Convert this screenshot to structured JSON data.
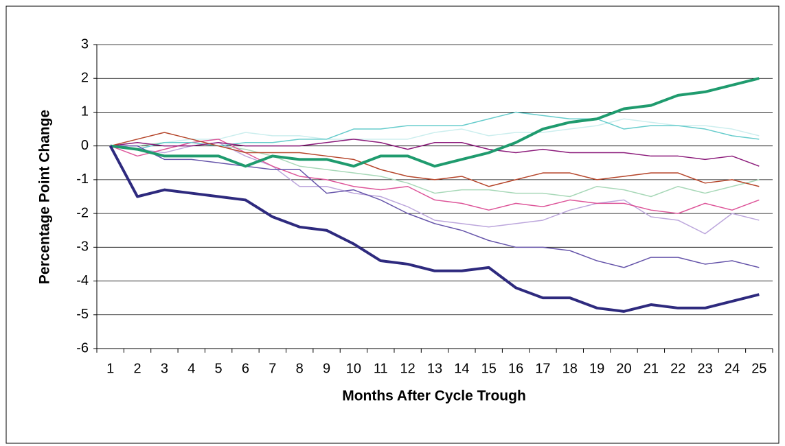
{
  "chart_data": {
    "type": "line",
    "x_label": "Months After Cycle Trough",
    "y_label": "Percentage Point Change",
    "categories": [
      "1",
      "2",
      "3",
      "4",
      "5",
      "6",
      "7",
      "8",
      "9",
      "10",
      "11",
      "12",
      "13",
      "14",
      "15",
      "16",
      "17",
      "18",
      "19",
      "20",
      "21",
      "22",
      "23",
      "24",
      "25"
    ],
    "ylim": [
      -6,
      3
    ],
    "yticks": [
      -6,
      -5,
      -4,
      -3,
      -2,
      -1,
      0,
      1,
      2,
      3
    ],
    "grid": true,
    "series": [
      {
        "color": "#CCEEEE",
        "linewidth": 1.5,
        "values": [
          0,
          0,
          0.1,
          0.2,
          0.2,
          0.4,
          0.3,
          0.3,
          0.2,
          0.2,
          0.2,
          0.2,
          0.4,
          0.5,
          0.3,
          0.4,
          0.4,
          0.5,
          0.6,
          0.8,
          0.7,
          0.6,
          0.6,
          0.5,
          0.3
        ]
      },
      {
        "color": "#A8D8B8",
        "linewidth": 1.5,
        "values": [
          0,
          0,
          0.1,
          0.1,
          0.0,
          -0.1,
          -0.3,
          -0.6,
          -0.7,
          -0.8,
          -0.9,
          -1.1,
          -1.4,
          -1.3,
          -1.3,
          -1.4,
          -1.4,
          -1.5,
          -1.2,
          -1.3,
          -1.5,
          -1.2,
          -1.4,
          -1.2,
          -1.0
        ]
      },
      {
        "color": "#BCA6DC",
        "linewidth": 1.5,
        "values": [
          0,
          -0.1,
          -0.2,
          0.0,
          0.1,
          -0.3,
          -0.6,
          -1.2,
          -1.2,
          -1.4,
          -1.5,
          -1.8,
          -2.2,
          -2.3,
          -2.4,
          -2.3,
          -2.2,
          -1.9,
          -1.7,
          -1.6,
          -2.1,
          -2.2,
          -2.6,
          -2.0,
          -2.2
        ]
      },
      {
        "color": "#DD5599",
        "linewidth": 1.5,
        "values": [
          0,
          -0.3,
          -0.1,
          0.1,
          0.2,
          -0.2,
          -0.6,
          -0.9,
          -1.0,
          -1.2,
          -1.3,
          -1.2,
          -1.6,
          -1.7,
          -1.9,
          -1.7,
          -1.8,
          -1.6,
          -1.7,
          -1.7,
          -1.9,
          -2.0,
          -1.7,
          -1.9,
          -1.6
        ]
      },
      {
        "color": "#66CCCC",
        "linewidth": 1.5,
        "values": [
          0,
          -0.1,
          0.1,
          0.1,
          0.0,
          0.1,
          0.1,
          0.2,
          0.2,
          0.5,
          0.5,
          0.6,
          0.6,
          0.6,
          0.8,
          1.0,
          0.9,
          0.8,
          0.8,
          0.5,
          0.6,
          0.6,
          0.5,
          0.3,
          0.2
        ]
      },
      {
        "color": "#8B1A7A",
        "linewidth": 1.5,
        "values": [
          0,
          0.1,
          0.0,
          0.0,
          0.1,
          0.0,
          0.0,
          0.0,
          0.1,
          0.2,
          0.1,
          -0.1,
          0.1,
          0.1,
          -0.1,
          -0.2,
          -0.1,
          -0.2,
          -0.2,
          -0.2,
          -0.3,
          -0.3,
          -0.4,
          -0.3,
          -0.6
        ]
      },
      {
        "color": "#B5452A",
        "linewidth": 1.5,
        "values": [
          0,
          0.2,
          0.4,
          0.2,
          0.0,
          -0.2,
          -0.2,
          -0.2,
          -0.3,
          -0.4,
          -0.7,
          -0.9,
          -1.0,
          -0.9,
          -1.2,
          -1.0,
          -0.8,
          -0.8,
          -1.0,
          -0.9,
          -0.8,
          -0.8,
          -1.1,
          -1.0,
          -1.2
        ]
      },
      {
        "color": "#6655AA",
        "linewidth": 1.5,
        "values": [
          0,
          0,
          -0.4,
          -0.4,
          -0.5,
          -0.6,
          -0.7,
          -0.7,
          -1.4,
          -1.3,
          -1.6,
          -2.0,
          -2.3,
          -2.5,
          -2.8,
          -3.0,
          -3.0,
          -3.1,
          -3.4,
          -3.6,
          -3.3,
          -3.3,
          -3.5,
          -3.4,
          -3.6
        ]
      },
      {
        "color": "#1F9B6E",
        "linewidth": 4,
        "values": [
          0,
          -0.1,
          -0.3,
          -0.3,
          -0.3,
          -0.6,
          -0.3,
          -0.4,
          -0.4,
          -0.6,
          -0.3,
          -0.3,
          -0.6,
          -0.4,
          -0.2,
          0.1,
          0.5,
          0.7,
          0.8,
          1.1,
          1.2,
          1.5,
          1.6,
          1.8,
          2.0
        ]
      },
      {
        "color": "#2E2A7E",
        "linewidth": 4,
        "values": [
          0,
          -1.5,
          -1.3,
          -1.4,
          -1.5,
          -1.6,
          -2.1,
          -2.4,
          -2.5,
          -2.9,
          -3.4,
          -3.5,
          -3.7,
          -3.7,
          -3.6,
          -4.2,
          -4.5,
          -4.5,
          -4.8,
          -4.9,
          -4.7,
          -4.8,
          -4.8,
          -4.6,
          -4.4
        ]
      }
    ]
  }
}
